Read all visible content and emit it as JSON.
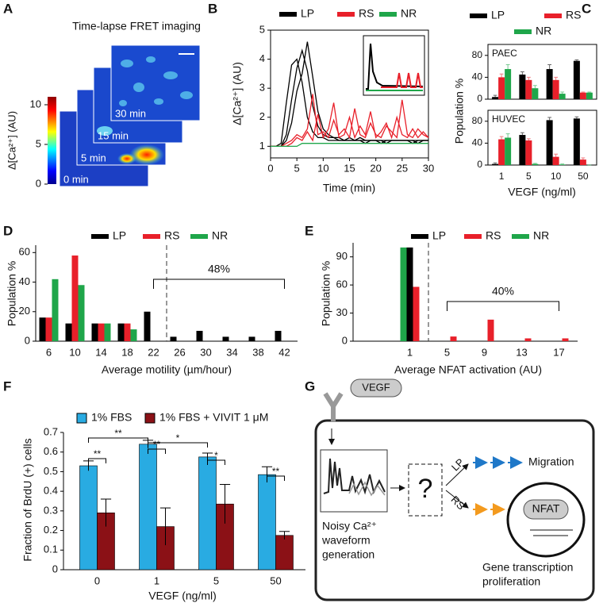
{
  "panel_labels": [
    "A",
    "B",
    "C",
    "D",
    "E",
    "F",
    "G"
  ],
  "fret_image": {
    "title": "Time-lapse FRET imaging",
    "frames": [
      "0 min",
      "5 min",
      "15 min",
      "30 min"
    ],
    "colorbar": {
      "label": "Δ[Ca²⁺] (AU)",
      "ylim": [
        0,
        11
      ],
      "yticks": [
        0,
        5,
        10
      ]
    }
  },
  "chart_data": [
    {
      "type": "line",
      "xlabel": "Time (min)",
      "ylabel": "Δ[Ca²⁺] (AU)",
      "x": [
        0,
        1,
        2,
        3,
        4,
        5,
        6,
        7,
        8,
        9,
        10,
        11,
        12,
        13,
        14,
        15,
        16,
        17,
        18,
        19,
        20,
        21,
        22,
        23,
        24,
        25,
        26,
        27,
        28,
        29,
        30
      ],
      "xlim": [
        0,
        30
      ],
      "xticks": [
        0,
        5,
        10,
        15,
        20,
        25,
        30
      ],
      "ylim": [
        0.6,
        5
      ],
      "yticks": [
        1,
        2,
        3,
        4,
        5
      ],
      "series": [
        {
          "name": "LP",
          "color": "#000000",
          "traces": [
            [
              1.0,
              1.0,
              1.1,
              2.5,
              3.8,
              4.0,
              3.2,
              2.0,
              1.5,
              1.3,
              1.3,
              1.2,
              1.2,
              1.2,
              1.2,
              1.2,
              1.2,
              1.2,
              1.2,
              1.2,
              1.2,
              1.2,
              1.2,
              1.2,
              1.2,
              1.2,
              1.2,
              1.2,
              1.2,
              1.2,
              1.2
            ],
            [
              1.0,
              1.0,
              1.0,
              1.4,
              2.6,
              3.7,
              4.3,
              3.6,
              2.4,
              1.7,
              1.4,
              1.3,
              1.3,
              1.2,
              1.2,
              1.3,
              1.2,
              1.2,
              1.1,
              1.2,
              1.2,
              1.2,
              1.1,
              1.2,
              1.2,
              1.2,
              1.2,
              1.1,
              1.2,
              1.2,
              1.2
            ],
            [
              1.0,
              1.0,
              1.0,
              1.2,
              1.8,
              2.9,
              3.5,
              4.6,
              3.4,
              2.2,
              1.6,
              1.4,
              1.3,
              1.3,
              1.2,
              1.2,
              1.2,
              1.3,
              1.2,
              1.2,
              1.2,
              1.1,
              1.2,
              1.2,
              1.2,
              1.2,
              1.2,
              1.2,
              1.1,
              1.2,
              1.2
            ]
          ]
        },
        {
          "name": "RS",
          "color": "#e8202a",
          "traces": [
            [
              1.0,
              1.0,
              1.0,
              1.0,
              1.1,
              1.3,
              1.2,
              1.5,
              1.2,
              2.1,
              1.3,
              1.6,
              2.5,
              1.3,
              1.4,
              2.0,
              1.3,
              1.7,
              1.4,
              2.2,
              1.3,
              1.5,
              1.8,
              1.3,
              2.0,
              1.4,
              1.3,
              1.6,
              1.3,
              1.5,
              1.3
            ],
            [
              1.0,
              1.0,
              1.0,
              1.1,
              1.2,
              1.4,
              1.3,
              1.6,
              2.8,
              1.4,
              1.5,
              1.3,
              1.9,
              1.4,
              1.6,
              1.3,
              2.3,
              1.4,
              1.3,
              1.8,
              1.4,
              1.3,
              1.7,
              1.5,
              1.3,
              2.6,
              1.4,
              1.3,
              1.6,
              1.4,
              1.3
            ]
          ]
        },
        {
          "name": "NR",
          "color": "#1fa64a",
          "traces": [
            [
              1.0,
              1.0,
              1.0,
              1.0,
              1.0,
              1.0,
              1.1,
              1.1,
              1.1,
              1.1,
              1.1,
              1.1,
              1.1,
              1.1,
              1.1,
              1.1,
              1.1,
              1.1,
              1.1,
              1.1,
              1.1,
              1.1,
              1.1,
              1.1,
              1.1,
              1.1,
              1.1,
              1.1,
              1.1,
              1.1,
              1.1
            ]
          ]
        }
      ]
    },
    {
      "type": "bar",
      "label": "PAEC",
      "ylabel": "Population %",
      "ylim": [
        0,
        100
      ],
      "yticks": [
        0,
        40,
        80
      ],
      "series": [
        {
          "name": "LP",
          "color": "#000000",
          "values": [
            4,
            45,
            55,
            70
          ],
          "errors": [
            3,
            5,
            8,
            2
          ]
        },
        {
          "name": "RS",
          "color": "#e8202a",
          "values": [
            40,
            35,
            35,
            12
          ],
          "errors": [
            6,
            5,
            5,
            1
          ]
        },
        {
          "name": "NR",
          "color": "#1fa64a",
          "values": [
            55,
            20,
            10,
            12
          ],
          "errors": [
            8,
            5,
            3,
            1
          ]
        }
      ]
    },
    {
      "type": "bar",
      "label": "HUVEC",
      "xlabel": "VEGF (ng/ml)",
      "categories": [
        "1",
        "5",
        "10",
        "50"
      ],
      "ylim": [
        0,
        100
      ],
      "yticks": [
        0,
        40,
        80
      ],
      "series": [
        {
          "color": "#000000",
          "values": [
            2,
            55,
            82,
            85
          ],
          "errors": [
            2,
            4,
            5,
            3
          ]
        },
        {
          "color": "#e8202a",
          "values": [
            47,
            45,
            15,
            10
          ],
          "errors": [
            5,
            3,
            5,
            3
          ]
        },
        {
          "color": "#1fa64a",
          "values": [
            50,
            2,
            1,
            0
          ],
          "errors": [
            7,
            1,
            1,
            0
          ]
        }
      ]
    },
    {
      "type": "bar",
      "xlabel": "Average motility (µm/hour)",
      "ylabel": "Population %",
      "annotation": "48%",
      "categories": [
        "6",
        "10",
        "14",
        "18",
        "22",
        "26",
        "30",
        "34",
        "38",
        "42"
      ],
      "ylim": [
        0,
        65
      ],
      "yticks": [
        0,
        20,
        40,
        60
      ],
      "series": [
        {
          "name": "LP",
          "color": "#000000",
          "values": [
            16,
            12,
            12,
            12,
            20,
            3,
            7,
            3,
            3,
            7
          ]
        },
        {
          "name": "RS",
          "color": "#e8202a",
          "values": [
            16,
            58,
            12,
            12,
            0,
            0,
            0,
            0,
            0,
            0
          ]
        },
        {
          "name": "NR",
          "color": "#1fa64a",
          "values": [
            42,
            38,
            12,
            8,
            0,
            0,
            0,
            0,
            0,
            0
          ]
        }
      ]
    },
    {
      "type": "bar",
      "xlabel": "Average NFAT activation (AU)",
      "ylabel": "Population %",
      "annotation": "40%",
      "categories": [
        "1",
        "5",
        "9",
        "13",
        "17"
      ],
      "ylim": [
        0,
        105
      ],
      "yticks": [
        0,
        30,
        60,
        90
      ],
      "series": [
        {
          "name": "LP",
          "color": "#000000",
          "values": [
            100,
            0,
            0,
            0,
            0
          ]
        },
        {
          "name": "RS",
          "color": "#e8202a",
          "values": [
            58,
            5,
            23,
            3,
            3
          ]
        },
        {
          "name": "NR",
          "color": "#1fa64a",
          "values": [
            100,
            0,
            0,
            0,
            0
          ]
        }
      ]
    },
    {
      "type": "bar",
      "xlabel": "VEGF (ng/ml)",
      "ylabel": "Fraction of BrdU (+) cells",
      "categories": [
        "0",
        "1",
        "5",
        "50"
      ],
      "ylim": [
        0,
        0.7
      ],
      "yticks": [
        0,
        0.1,
        0.2,
        0.3,
        0.4,
        0.5,
        0.6,
        0.7
      ],
      "significance": [
        "**",
        "**",
        "**",
        "*",
        "*",
        "**"
      ],
      "series": [
        {
          "name": "1% FBS",
          "color": "#29abe2",
          "values": [
            0.53,
            0.64,
            0.575,
            0.485
          ],
          "errors": [
            0.025,
            0.02,
            0.02,
            0.04
          ]
        },
        {
          "name": "1% FBS + VIVIT 1 μM",
          "color": "#8b1116",
          "values": [
            0.29,
            0.22,
            0.335,
            0.175
          ],
          "errors": [
            0.07,
            0.095,
            0.1,
            0.02
          ]
        }
      ]
    }
  ],
  "diagram": {
    "ligand": "VEGF",
    "unknown": "?",
    "branches": [
      "LP",
      "RS"
    ],
    "output": "Migration",
    "nucleus": "NFAT",
    "caption_left": [
      "Noisy Ca²⁺",
      "waveform",
      "generation"
    ],
    "caption_right": [
      "Gene transcription",
      "proliferation"
    ]
  }
}
